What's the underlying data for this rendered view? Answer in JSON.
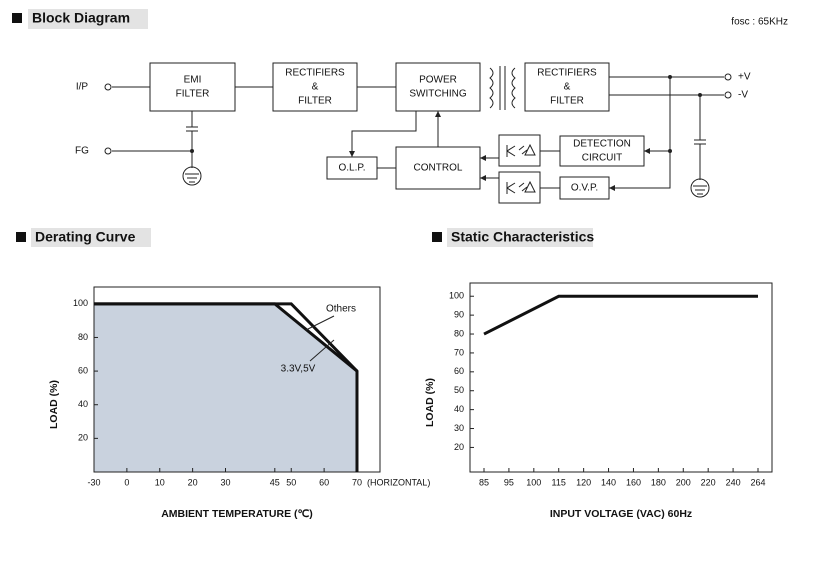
{
  "block_diagram": {
    "title": "Block Diagram",
    "note": "fosc : 65KHz",
    "inputs": [
      "I/P",
      "FG"
    ],
    "outputs": [
      "+V",
      "-V"
    ],
    "blocks": [
      {
        "lines": [
          "EMI",
          "FILTER"
        ]
      },
      {
        "lines": [
          "RECTIFIERS",
          "&",
          "FILTER"
        ]
      },
      {
        "lines": [
          "POWER",
          "SWITCHING"
        ]
      },
      {
        "lines": [
          "RECTIFIERS",
          "&",
          "FILTER"
        ]
      },
      {
        "lines": [
          "DETECTION",
          "CIRCUIT"
        ]
      },
      {
        "lines": [
          "O.V.P."
        ]
      },
      {
        "lines": [
          "CONTROL"
        ]
      },
      {
        "lines": [
          "O.L.P."
        ]
      }
    ]
  },
  "chart_data": [
    {
      "type": "line",
      "title": "Derating Curve",
      "x_label": "AMBIENT TEMPERATURE (℃)",
      "y_label": "LOAD (%)",
      "x_note": "(HORIZONTAL)",
      "xlim": [
        -30,
        77
      ],
      "xticks": [
        -30,
        0,
        10,
        20,
        30,
        45,
        50,
        60,
        70
      ],
      "ylim": [
        0,
        110
      ],
      "yticks": [
        20,
        40,
        60,
        80,
        100
      ],
      "series": [
        {
          "name": "Others",
          "color": "#111111",
          "x": [
            -30,
            50,
            70,
            70
          ],
          "values": [
            100,
            100,
            60,
            0
          ]
        },
        {
          "name": "3.3V,5V",
          "color": "#111111",
          "fill": "#c9d2de",
          "x": [
            -30,
            45,
            70
          ],
          "values": [
            100,
            100,
            60
          ]
        }
      ]
    },
    {
      "type": "line",
      "title": "Static Characteristics",
      "x_label": "INPUT VOLTAGE (VAC) 60Hz",
      "y_label": "LOAD (%)",
      "categories": [
        85,
        95,
        100,
        115,
        120,
        140,
        160,
        180,
        200,
        220,
        240,
        264
      ],
      "ylim": [
        7,
        107
      ],
      "yticks": [
        20,
        30,
        40,
        50,
        60,
        70,
        80,
        90,
        100
      ],
      "series": [
        {
          "name": null,
          "color": "#111111",
          "x": [
            85,
            115,
            264
          ],
          "values": [
            80,
            100,
            100
          ]
        }
      ]
    }
  ]
}
